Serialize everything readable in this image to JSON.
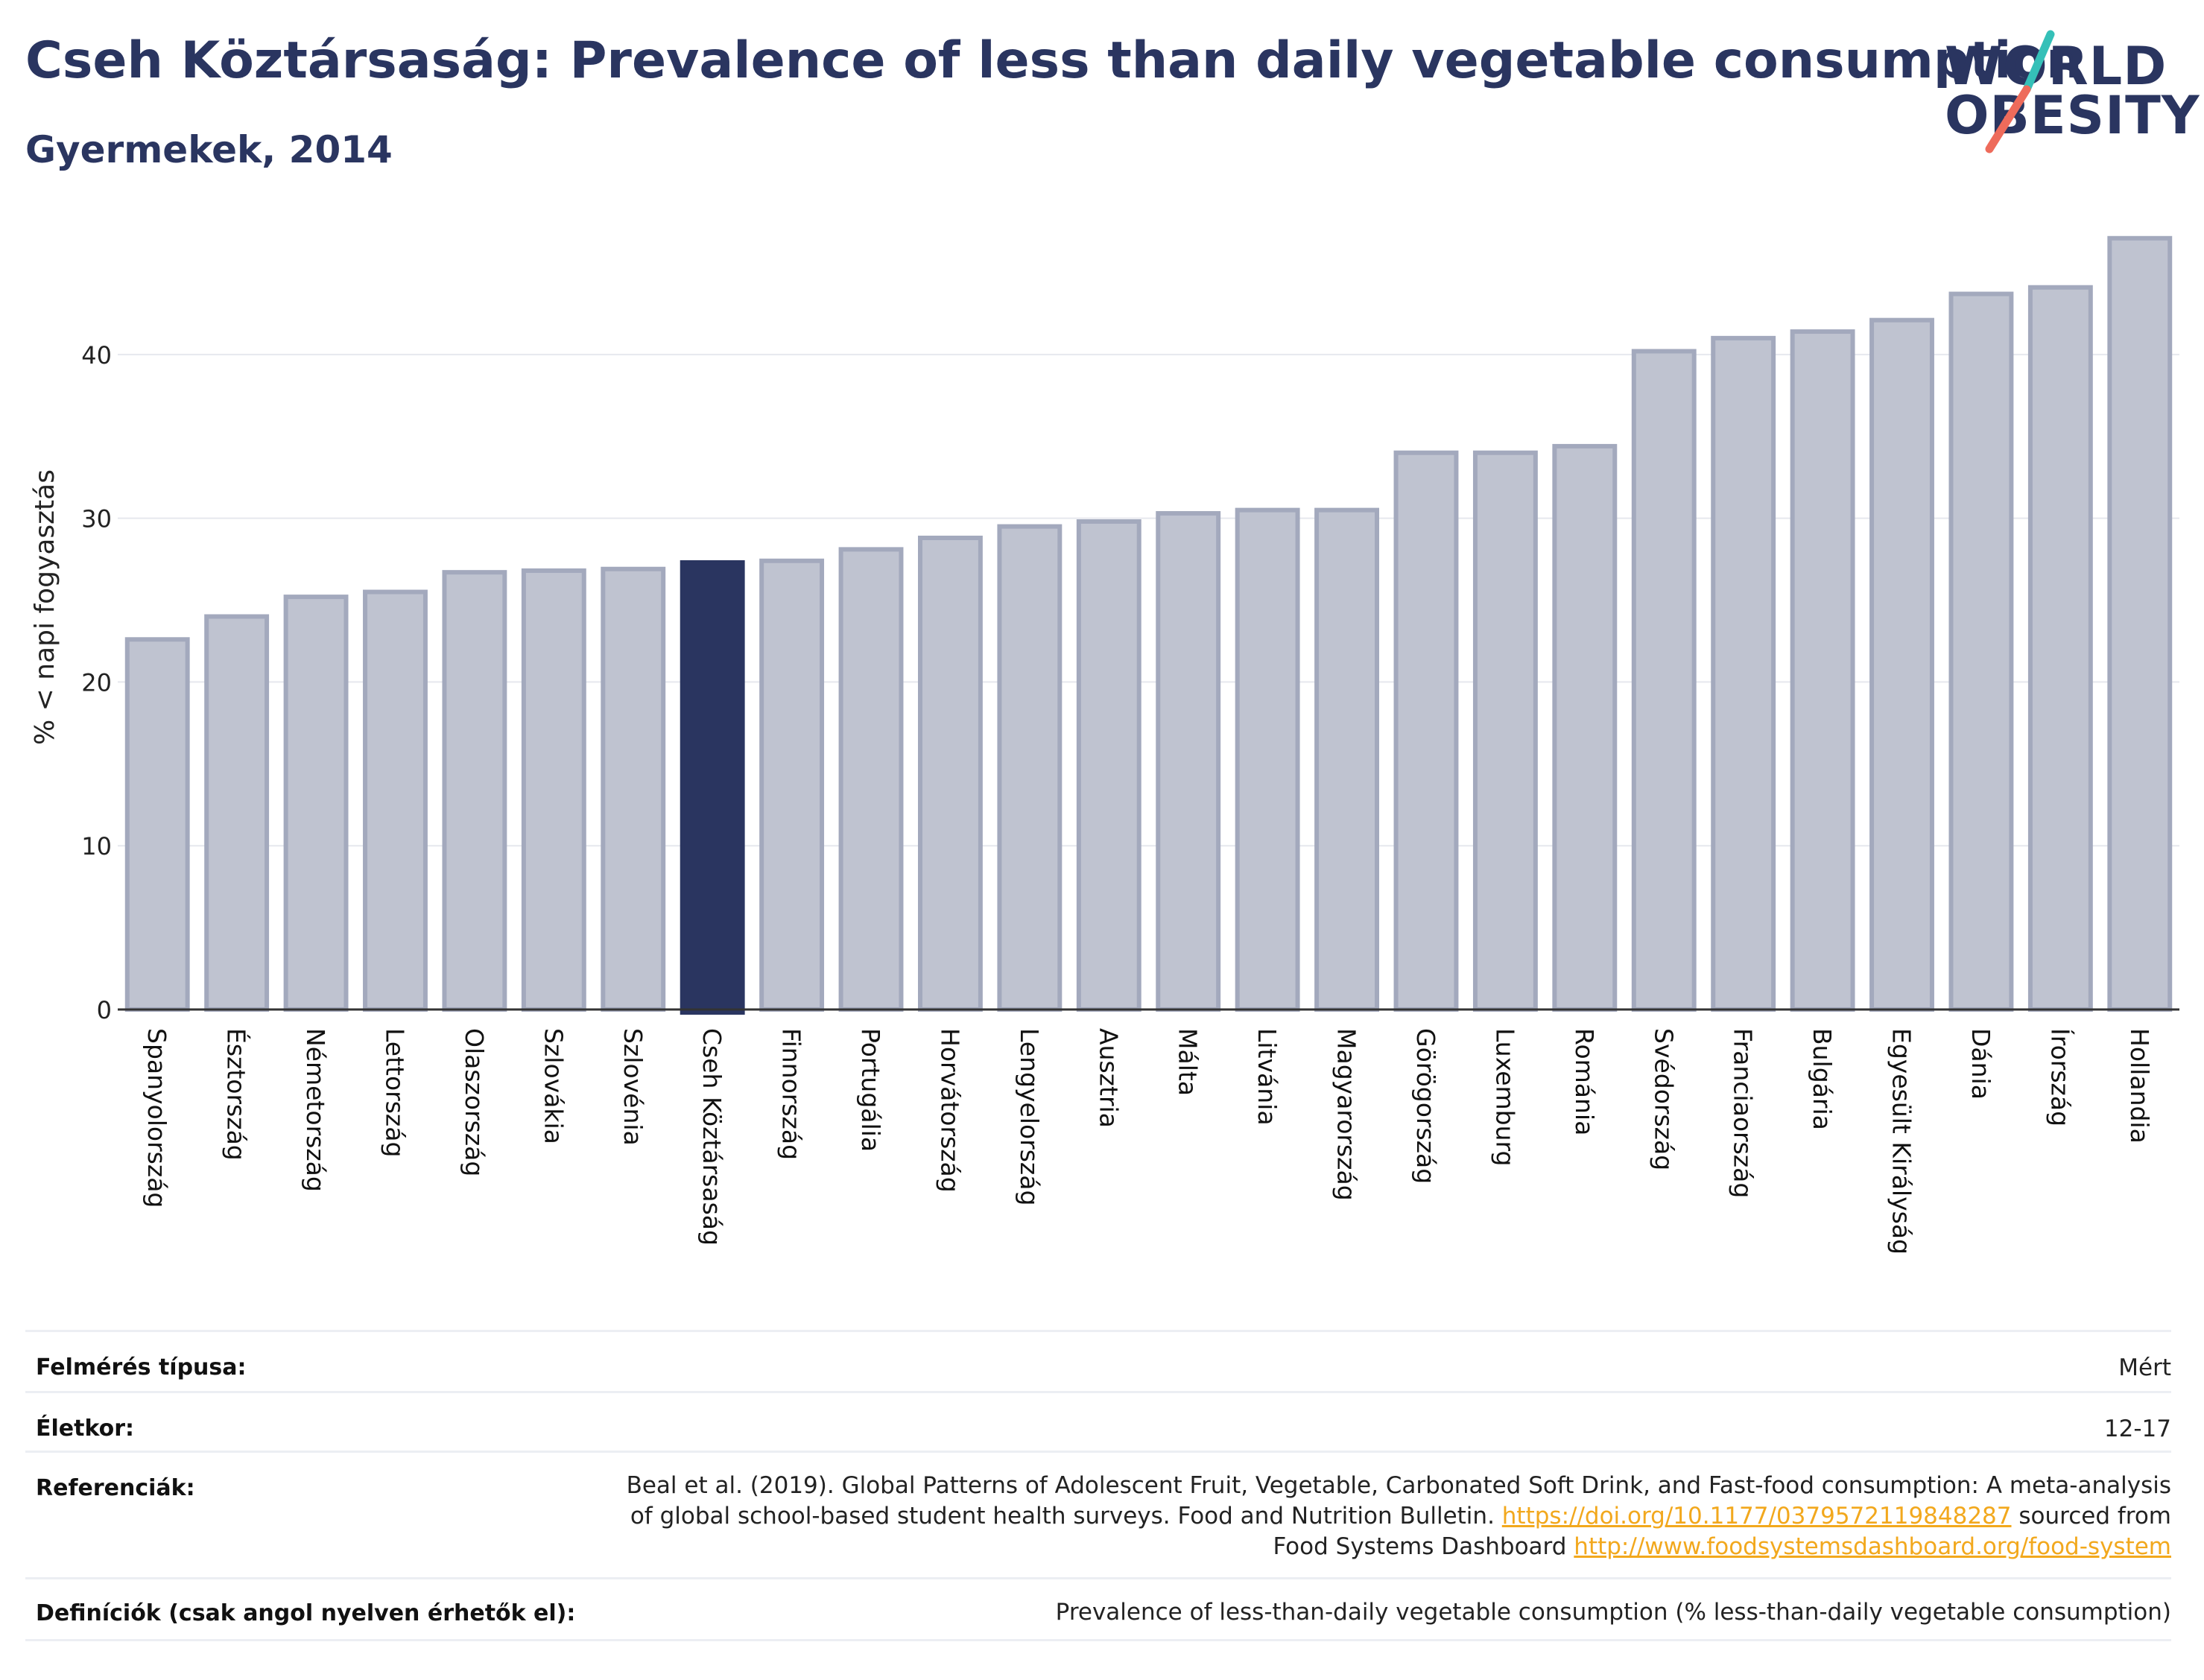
{
  "header": {
    "title": "Cseh Köztársaság: Prevalence of less than daily vegetable consumption",
    "subtitle": "Gyermekek, 2014",
    "logo_line1": "WORLD",
    "logo_line2": "OBESITY"
  },
  "colors": {
    "title": "#2a3560",
    "bar": "#bfc3d0",
    "bar_border": "#a3a9bd",
    "highlight": "#2a3560",
    "link": "#f2a81d",
    "logo_slash_top": "#35c0b8",
    "logo_slash_bottom": "#ee6b5b"
  },
  "chart_data": {
    "type": "bar",
    "ylabel": "% < napi fogyasztás",
    "ylim": [
      0,
      48
    ],
    "yticks": [
      0,
      10,
      20,
      30,
      40
    ],
    "grid": true,
    "highlight": "Cseh Köztársaság",
    "categories": [
      "Spanyolország",
      "Észtország",
      "Németország",
      "Lettország",
      "Olaszország",
      "Szlovákia",
      "Szlovénia",
      "Cseh Köztársaság",
      "Finnország",
      "Portugália",
      "Horvátország",
      "Lengyelország",
      "Ausztria",
      "Málta",
      "Litvánia",
      "Magyarország",
      "Görögország",
      "Luxemburg",
      "Románia",
      "Svédország",
      "Franciaország",
      "Bulgária",
      "Egyesült Királyság",
      "Dánia",
      "Írország",
      "Hollandia"
    ],
    "values": [
      22.6,
      24.0,
      25.2,
      25.5,
      26.7,
      26.8,
      26.9,
      27.3,
      27.4,
      28.1,
      28.8,
      29.5,
      29.8,
      30.3,
      30.5,
      30.5,
      34.0,
      34.0,
      34.4,
      40.2,
      41.0,
      41.4,
      42.1,
      43.7,
      44.1,
      47.1
    ]
  },
  "meta": {
    "survey_label": "Felmérés típusa:",
    "survey_value": "Mért",
    "age_label": "Életkor:",
    "age_value": "12-17",
    "ref_label": "Referenciák:",
    "ref_text1": "Beal et al. (2019). Global Patterns of Adolescent Fruit, Vegetable, Carbonated Soft Drink, and Fast-food consumption: A meta-analysis",
    "ref_text2": "of global school-based student health surveys. Food and Nutrition Bulletin. ",
    "ref_link1": "https://doi.org/10.1177/0379572119848287",
    "ref_text3": " sourced from",
    "ref_text4": "Food Systems Dashboard ",
    "ref_link2": "http://www.foodsystemsdashboard.org/food-system",
    "def_label": "Definíciók (csak angol nyelven érhetők el):",
    "def_value": "Prevalence of less-than-daily vegetable consumption (% less-than-daily vegetable consumption)"
  }
}
